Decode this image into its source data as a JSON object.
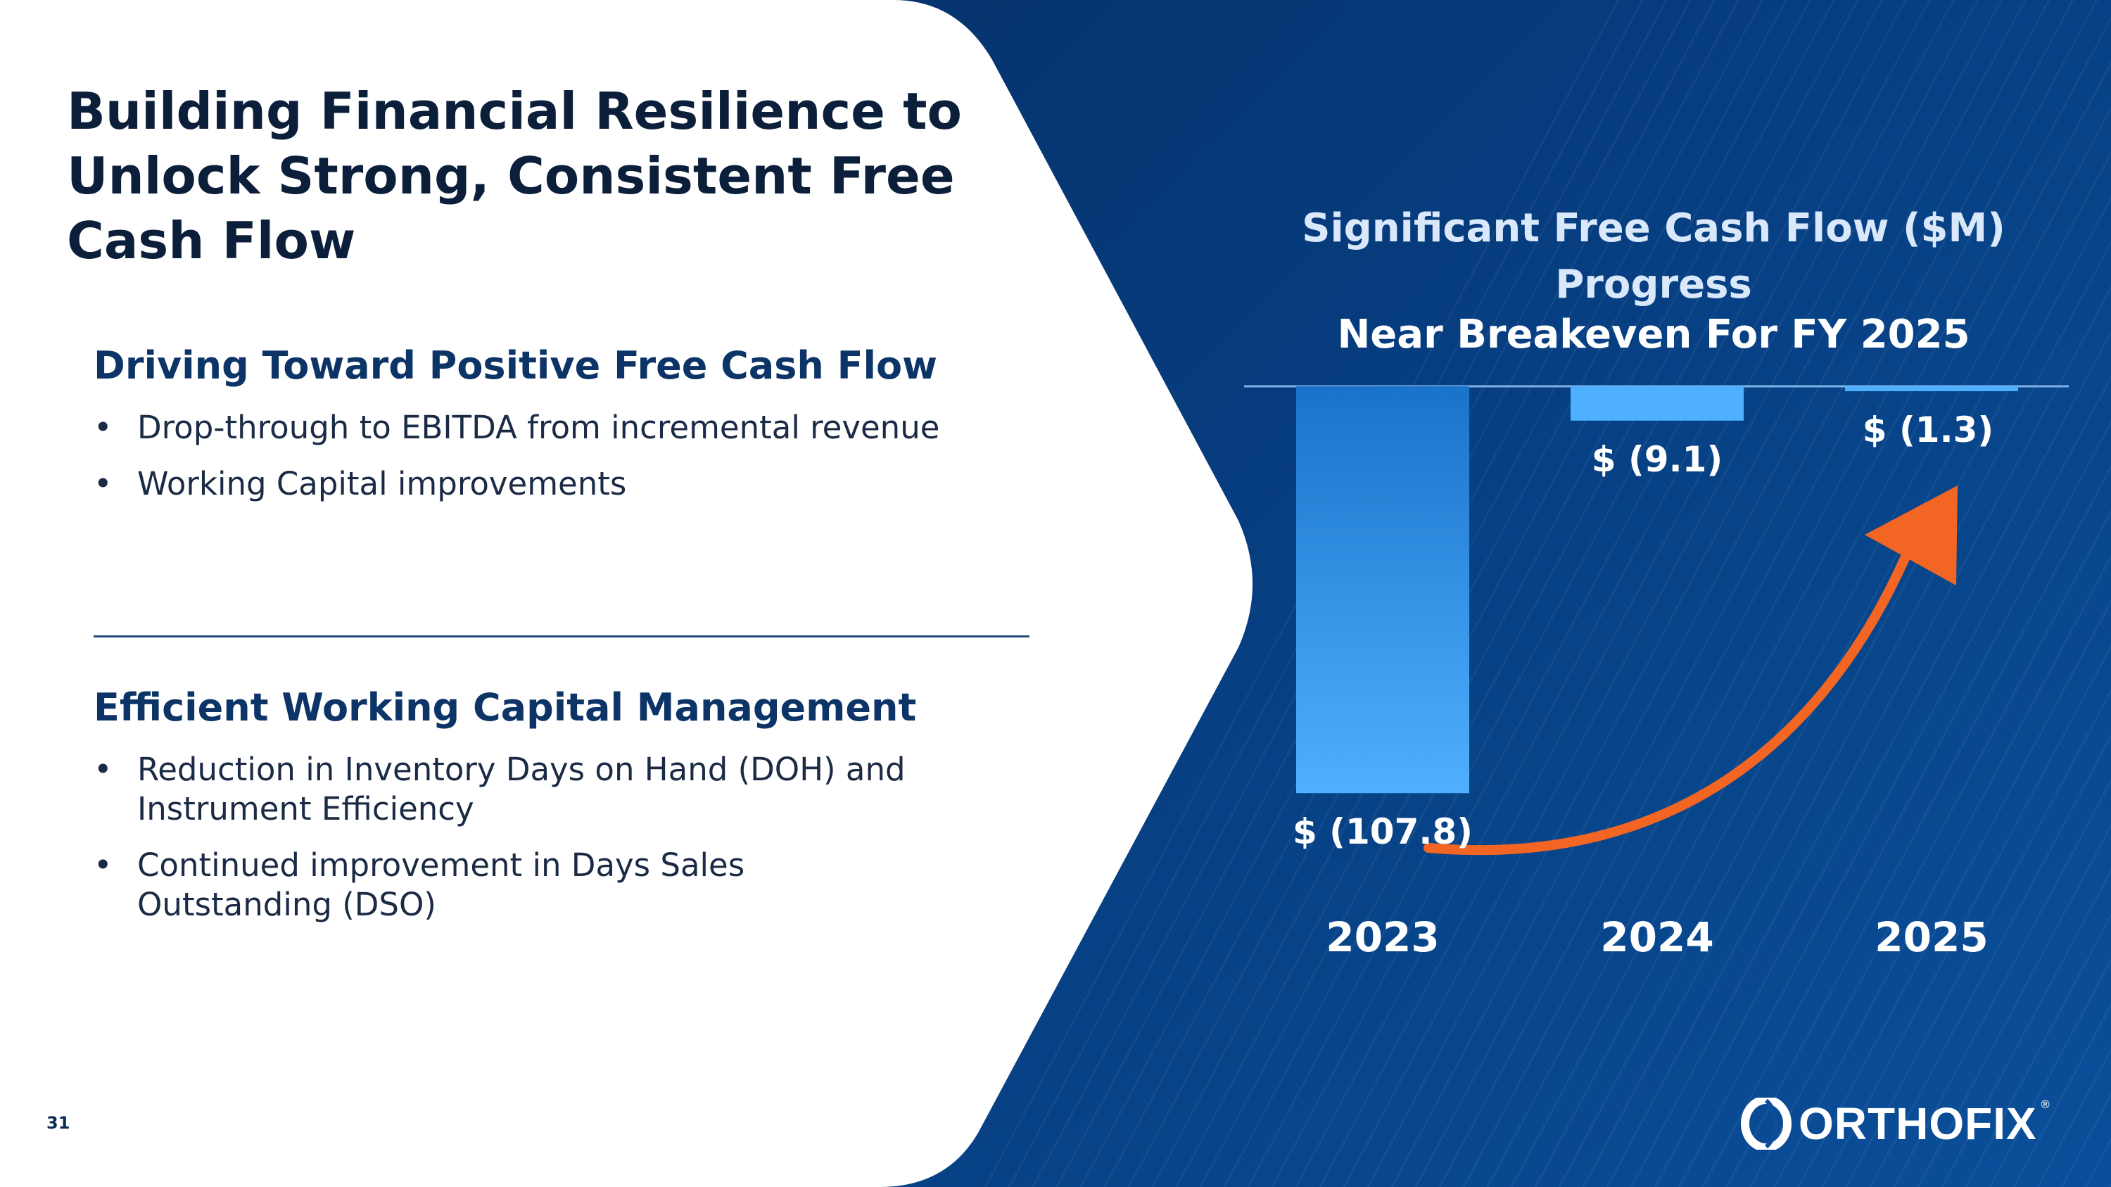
{
  "slide": {
    "title": "Building Financial Resilience to Unlock Strong, Consistent Free Cash Flow",
    "page_number": "31",
    "brand": "ORTHOFIX",
    "brand_mark": "®"
  },
  "sections": [
    {
      "heading": "Driving Toward Positive Free Cash Flow",
      "bullets": [
        "Drop-through to EBITDA from incremental revenue",
        "Working Capital improvements"
      ]
    },
    {
      "heading": "Efficient Working Capital Management",
      "bullets": [
        "Reduction in Inventory Days on Hand (DOH) and Instrument Efficiency",
        "Continued improvement in Days Sales Outstanding (DSO)"
      ]
    }
  ],
  "colors": {
    "bar": "#2f93e6",
    "bar_light": "#4fb0ff",
    "arrow": "#f26522",
    "title_dark": "#0b1f3a",
    "heading_blue": "#0d3467"
  },
  "chart_data": {
    "type": "bar",
    "title": "Significant Free Cash Flow ($M) Progress",
    "subtitle": "Near Breakeven For FY 2025",
    "categories": [
      "2023",
      "2024",
      "2025"
    ],
    "values": [
      -107.8,
      -9.1,
      -1.3
    ],
    "value_labels": [
      "$ (107.8)",
      "$ (9.1)",
      "$ (1.3)"
    ],
    "ylim": [
      -110,
      0
    ],
    "grid": false,
    "annotation": "upward-trend-arrow"
  }
}
